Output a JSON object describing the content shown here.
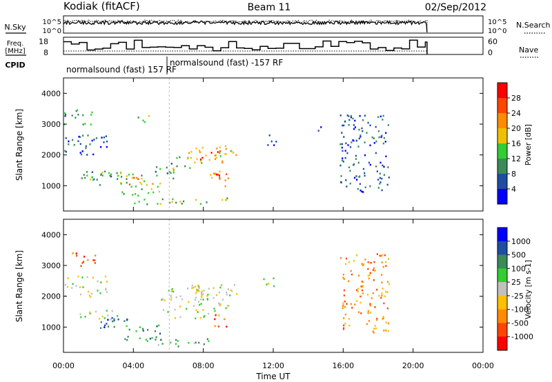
{
  "header": {
    "station": "Kodiak (fitACF)",
    "beam": "Beam 11",
    "date": "02/Sep/2012"
  },
  "left_labels": {
    "nsky": "N.Sky",
    "freq_line1": "Freq.",
    "freq_line2": "[MHz]",
    "cpid": "CPID"
  },
  "right_labels": {
    "nsearch": "N.Search",
    "nave": "Nave"
  },
  "noise_axis_left": [
    "10^5",
    "10^0"
  ],
  "noise_axis_right": [
    "10^5",
    "10^0"
  ],
  "freq_axis_left": [
    "18",
    "8"
  ],
  "nave_axis_right": [
    "60",
    "0"
  ],
  "cpid_labels": [
    "normalsound (fast) 157 RF",
    "normalsound (fast) -157 RF"
  ],
  "colors": {
    "power": [
      "#0000ff",
      "#1f4ea0",
      "#3a8a5a",
      "#32cd32",
      "#f0c000",
      "#ff8c00",
      "#ff4500",
      "#ff0000"
    ],
    "velocity": [
      "#0000ff",
      "#1f4ea0",
      "#3a8a5a",
      "#32cd32",
      "#c0c0c0",
      "#ffc000",
      "#ff8c00",
      "#ff4500",
      "#ff0000"
    ]
  },
  "chart_data": [
    {
      "type": "heatmap",
      "panel": "power",
      "ylabel": "Slant Range [km]",
      "ylim": [
        180,
        4500
      ],
      "yticks": [
        1000,
        2000,
        3000,
        4000
      ],
      "xlim": [
        0,
        24
      ],
      "colorbar_label": "Power [dB]",
      "colorbar_ticks": [
        "4",
        "8",
        "12",
        "16",
        "20",
        "24",
        "28"
      ],
      "regions": [
        {
          "t": [
            0.9,
            2.8
          ],
          "r": [
            1150,
            1600
          ],
          "level": 2
        },
        {
          "t": [
            1.0,
            1.8
          ],
          "r": [
            1200,
            1400
          ],
          "level": 4
        },
        {
          "t": [
            2.0,
            3.4
          ],
          "r": [
            1000,
            1500
          ],
          "level": 3
        },
        {
          "t": [
            3.2,
            4.8
          ],
          "r": [
            600,
            1400
          ],
          "level": 3
        },
        {
          "t": [
            3.7,
            4.3
          ],
          "r": [
            950,
            1300
          ],
          "level": 6
        },
        {
          "t": [
            4.3,
            5.6
          ],
          "r": [
            700,
            1200
          ],
          "level": 4
        },
        {
          "t": [
            5.2,
            6.5
          ],
          "r": [
            1200,
            1800
          ],
          "level": 2
        },
        {
          "t": [
            6.2,
            7.2
          ],
          "r": [
            1500,
            2000
          ],
          "level": 3
        },
        {
          "t": [
            7.0,
            10.0
          ],
          "r": [
            1750,
            2350
          ],
          "level": 4
        },
        {
          "t": [
            7.8,
            9.0
          ],
          "r": [
            1850,
            2150
          ],
          "level": 6
        },
        {
          "t": [
            8.3,
            9.4
          ],
          "r": [
            1000,
            1600
          ],
          "level": 5
        },
        {
          "t": [
            8.6,
            9.1
          ],
          "r": [
            1100,
            1400
          ],
          "level": 7
        },
        {
          "t": [
            4.0,
            9.5
          ],
          "r": [
            400,
            650
          ],
          "level": 3
        },
        {
          "t": [
            0.0,
            1.8
          ],
          "r": [
            3000,
            3500
          ],
          "level": 2
        },
        {
          "t": [
            4.2,
            4.9
          ],
          "r": [
            3000,
            3400
          ],
          "level": 3
        },
        {
          "t": [
            0.0,
            2.5
          ],
          "r": [
            2000,
            2700
          ],
          "level": 1
        },
        {
          "t": [
            11.4,
            12.2
          ],
          "r": [
            2300,
            2700
          ],
          "level": 1
        },
        {
          "t": [
            14.4,
            14.7
          ],
          "r": [
            2800,
            3100
          ],
          "level": 1
        },
        {
          "t": [
            15.8,
            18.6
          ],
          "r": [
            800,
            3400
          ],
          "level": 1
        }
      ]
    },
    {
      "type": "heatmap",
      "panel": "velocity",
      "ylabel": "Slant Range [km]",
      "ylim": [
        180,
        4500
      ],
      "yticks": [
        1000,
        2000,
        3000,
        4000
      ],
      "xlim": [
        0,
        24
      ],
      "xticks": [
        "00:00",
        "04:00",
        "08:00",
        "12:00",
        "16:00",
        "20:00",
        "00:00"
      ],
      "xlabel": "Time UT",
      "colorbar_label": "Velocity [m s-1]",
      "colorbar_ticks": [
        "1000",
        "500",
        "100",
        "25",
        "-25",
        "-100",
        "-500",
        "-1000"
      ],
      "regions": [
        {
          "t": [
            0.9,
            2.8
          ],
          "r": [
            1200,
            1600
          ],
          "level": 4
        },
        {
          "t": [
            2.0,
            3.8
          ],
          "r": [
            900,
            1400
          ],
          "level": 2
        },
        {
          "t": [
            2.0,
            3.4
          ],
          "r": [
            1000,
            1300
          ],
          "level": 1
        },
        {
          "t": [
            3.4,
            5.6
          ],
          "r": [
            600,
            1100
          ],
          "level": 2
        },
        {
          "t": [
            5.5,
            9.5
          ],
          "r": [
            1300,
            2400
          ],
          "level": 4
        },
        {
          "t": [
            7.5,
            10.0
          ],
          "r": [
            1900,
            2500
          ],
          "level": 4
        },
        {
          "t": [
            8.6,
            9.3
          ],
          "r": [
            1000,
            1500
          ],
          "level": 7
        },
        {
          "t": [
            4.0,
            8.5
          ],
          "r": [
            400,
            650
          ],
          "level": 3
        },
        {
          "t": [
            0.0,
            1.8
          ],
          "r": [
            3000,
            3500
          ],
          "level": 7
        },
        {
          "t": [
            0.0,
            2.5
          ],
          "r": [
            2000,
            2700
          ],
          "level": 4
        },
        {
          "t": [
            11.4,
            12.2
          ],
          "r": [
            2300,
            2700
          ],
          "level": 4
        },
        {
          "t": [
            15.8,
            18.6
          ],
          "r": [
            800,
            3400
          ],
          "level": 6
        }
      ]
    },
    {
      "type": "line",
      "panel": "noise",
      "series": [
        {
          "name": "N.Sky"
        },
        {
          "name": "N.Search"
        }
      ],
      "xlim": [
        0,
        24
      ],
      "data_end": 20.8
    },
    {
      "type": "line",
      "panel": "freq-nave",
      "series": [
        {
          "name": "Freq."
        },
        {
          "name": "Nave"
        }
      ],
      "ylim": [
        8,
        18
      ],
      "xlim": [
        0,
        24
      ],
      "data_end": 20.8
    }
  ]
}
